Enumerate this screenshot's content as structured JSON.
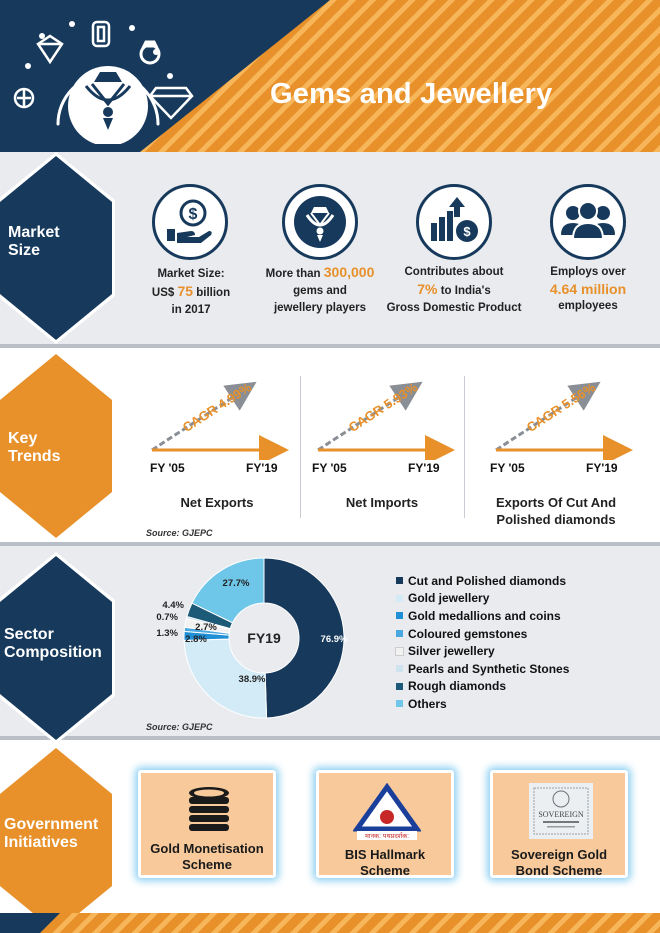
{
  "header": {
    "title": "Gems and Jewellery"
  },
  "colors": {
    "navy": "#173a5c",
    "orange": "#e8902a",
    "light_blue": "#6ec6e8"
  },
  "market_size": {
    "label_line1": "Market",
    "label_line2": "Size",
    "stats": [
      {
        "icon": "money-hand-icon",
        "pre": "Market Size:",
        "mid1": "US$ ",
        "value": "75",
        "mid2": " billion",
        "post": "in 2017"
      },
      {
        "icon": "necklace-icon",
        "pre": "More than ",
        "value": "300,000",
        "post1": "gems and",
        "post2": "jewellery players"
      },
      {
        "icon": "growth-chart-icon",
        "pre": "Contributes about",
        "value": "7%",
        "mid": " to India's",
        "post": "Gross Domestic Product"
      },
      {
        "icon": "employees-icon",
        "pre": "Employs over",
        "value": "4.64 million",
        "post": "employees"
      }
    ]
  },
  "key_trends": {
    "label_line1": "Key",
    "label_line2": "Trends",
    "source": "Source: GJEPC",
    "items": [
      {
        "start": "FY '05",
        "end": "FY'19",
        "cagr": "CAGR 4.99%",
        "name1": "Net Exports",
        "name2": ""
      },
      {
        "start": "FY '05",
        "end": "FY'19",
        "cagr": "CAGR 5.93%",
        "name1": "Net Imports",
        "name2": ""
      },
      {
        "start": "FY '05",
        "end": "FY'19",
        "cagr": "CAGR 5.56%",
        "name1": "Exports Of Cut And",
        "name2": "Polished diamonds"
      }
    ]
  },
  "sector": {
    "label_line1": "Sector",
    "label_line2": "Composition",
    "source": "Source: GJEPC",
    "center_label": "FY19"
  },
  "chart_data": {
    "type": "pie",
    "title": "",
    "center_label": "FY19",
    "legend_position": "right",
    "slices": [
      {
        "name": "Cut and Polished diamonds",
        "value": 76.9,
        "label": "76.9%",
        "color": "#173a5c"
      },
      {
        "name": "Gold jewellery",
        "value": 38.9,
        "label": "38.9%",
        "color": "#d3ebf6"
      },
      {
        "name": "Gold medallions and coins",
        "value": 2.8,
        "label": "2.8%",
        "color": "#1f8fd6"
      },
      {
        "name": "Coloured gemstones",
        "value": 1.3,
        "label": "1.3%",
        "color": "#4aa8e0"
      },
      {
        "name": "Silver jewellery",
        "value": 2.7,
        "label": "2.7%",
        "color": "#f2f2f2"
      },
      {
        "name": "Pearls and Synthetic Stones",
        "value": 0.7,
        "label": "0.7%",
        "color": "#cfe3ee"
      },
      {
        "name": "Rough diamonds",
        "value": 4.4,
        "label": "4.4%",
        "color": "#1d5a78"
      },
      {
        "name": "Others",
        "value": 27.7,
        "label": "27.7%",
        "color": "#6ec6e8"
      }
    ]
  },
  "government": {
    "label_line1": "Government",
    "label_line2": "Initiatives",
    "cards": [
      {
        "icon": "gold-coins-icon",
        "line1": "Gold Monetisation",
        "line2": "Scheme"
      },
      {
        "icon": "bis-logo-icon",
        "line1": "BIS Hallmark",
        "line2": "Scheme",
        "logo_text": "मानक: पथप्रदर्शक:"
      },
      {
        "icon": "sovereign-gold-bond-icon",
        "line1": "Sovereign Gold",
        "line2": "Bond Scheme",
        "logo_text": "SOVEREIGN"
      }
    ]
  }
}
